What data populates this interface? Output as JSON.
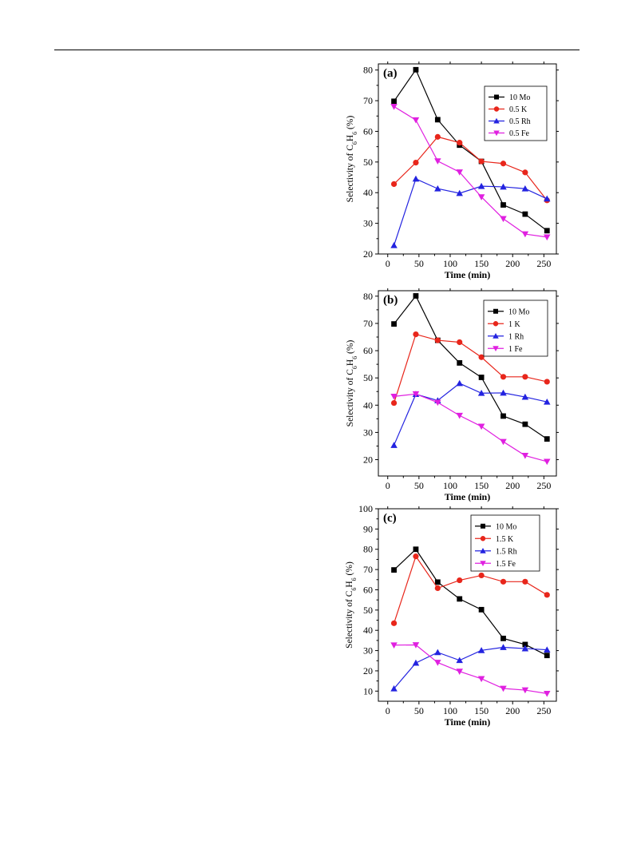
{
  "chart_data": [
    {
      "type": "line",
      "panel_label": "(a)",
      "xlabel": "Time (min)",
      "ylabel_text": "Selectivity of  C",
      "ylabel_sub1": "6",
      "ylabel_mid": "H",
      "ylabel_sub2": "6",
      "ylabel_end": " (%)",
      "xlim": [
        -15,
        270
      ],
      "ylim": [
        20,
        82
      ],
      "xticks": [
        0,
        50,
        100,
        150,
        200,
        250
      ],
      "yticks": [
        20,
        30,
        40,
        50,
        60,
        70,
        80
      ],
      "legend_position": "top-right",
      "x": [
        10,
        45,
        80,
        115,
        150,
        185,
        220,
        255
      ],
      "series": [
        {
          "name": "10 Mo",
          "color": "#000000",
          "marker": "square",
          "values": [
            69.8,
            80.1,
            63.8,
            55.5,
            50.2,
            36.0,
            33.0,
            27.6
          ]
        },
        {
          "name": "0.5 K",
          "color": "#e8261b",
          "marker": "circle",
          "values": [
            42.8,
            49.8,
            58.2,
            56.3,
            50.2,
            49.5,
            46.6,
            37.5
          ]
        },
        {
          "name": "0.5 Rh",
          "color": "#2323e0",
          "marker": "triangle-up",
          "values": [
            22.8,
            44.5,
            41.3,
            39.8,
            42.1,
            41.9,
            41.3,
            38.0
          ]
        },
        {
          "name": "0.5 Fe",
          "color": "#e020e0",
          "marker": "triangle-down",
          "values": [
            68.1,
            63.7,
            50.3,
            46.7,
            38.6,
            31.5,
            26.5,
            25.5
          ]
        }
      ]
    },
    {
      "type": "line",
      "panel_label": "(b)",
      "xlabel": "Time (min)",
      "ylabel_text": "Selectivity of  C",
      "ylabel_sub1": "6",
      "ylabel_mid": "H",
      "ylabel_sub2": "6",
      "ylabel_end": " (%)",
      "xlim": [
        -15,
        270
      ],
      "ylim": [
        14,
        82
      ],
      "xticks": [
        0,
        50,
        100,
        150,
        200,
        250
      ],
      "yticks": [
        20,
        30,
        40,
        50,
        60,
        70,
        80
      ],
      "legend_position": "top-right",
      "x": [
        10,
        45,
        80,
        115,
        150,
        185,
        220,
        255
      ],
      "series": [
        {
          "name": "10 Mo",
          "color": "#000000",
          "marker": "square",
          "values": [
            69.8,
            80.1,
            63.8,
            55.5,
            50.2,
            36.0,
            33.0,
            27.6
          ]
        },
        {
          "name": "1 K",
          "color": "#e8261b",
          "marker": "circle",
          "values": [
            40.8,
            66.0,
            63.8,
            63.1,
            57.6,
            50.4,
            50.4,
            48.6
          ]
        },
        {
          "name": "1 Rh",
          "color": "#2323e0",
          "marker": "triangle-up",
          "values": [
            25.3,
            44.0,
            41.7,
            48.0,
            44.4,
            44.5,
            43.0,
            41.2
          ]
        },
        {
          "name": "1 Fe",
          "color": "#e020e0",
          "marker": "triangle-down",
          "values": [
            43.2,
            44.1,
            41.0,
            36.2,
            32.2,
            26.6,
            21.5,
            19.3
          ]
        }
      ]
    },
    {
      "type": "line",
      "panel_label": "(c)",
      "xlabel": "Time (min)",
      "ylabel_text": "Selectivity of  C",
      "ylabel_sub1": "6",
      "ylabel_mid": "H",
      "ylabel_sub2": "6",
      "ylabel_end": " (%)",
      "xlim": [
        -15,
        270
      ],
      "ylim": [
        5,
        100
      ],
      "xticks": [
        0,
        50,
        100,
        150,
        200,
        250
      ],
      "yticks": [
        10,
        20,
        30,
        40,
        50,
        60,
        70,
        80,
        90,
        100
      ],
      "legend_position": "top-right",
      "x": [
        10,
        45,
        80,
        115,
        150,
        185,
        220,
        255
      ],
      "series": [
        {
          "name": "10 Mo",
          "color": "#000000",
          "marker": "square",
          "values": [
            69.8,
            80.0,
            63.8,
            55.5,
            50.2,
            36.0,
            33.0,
            27.6
          ]
        },
        {
          "name": "1.5 K",
          "color": "#e8261b",
          "marker": "circle",
          "values": [
            43.5,
            76.5,
            60.8,
            64.7,
            67.1,
            64.0,
            64.0,
            57.5
          ]
        },
        {
          "name": "1.5 Rh",
          "color": "#2323e0",
          "marker": "triangle-up",
          "values": [
            11.2,
            23.9,
            29.1,
            25.2,
            30.1,
            31.6,
            31.0,
            30.4
          ]
        },
        {
          "name": "1.5 Fe",
          "color": "#e020e0",
          "marker": "triangle-down",
          "values": [
            32.7,
            32.8,
            24.1,
            19.7,
            16.1,
            11.3,
            10.5,
            8.8
          ]
        }
      ]
    }
  ]
}
